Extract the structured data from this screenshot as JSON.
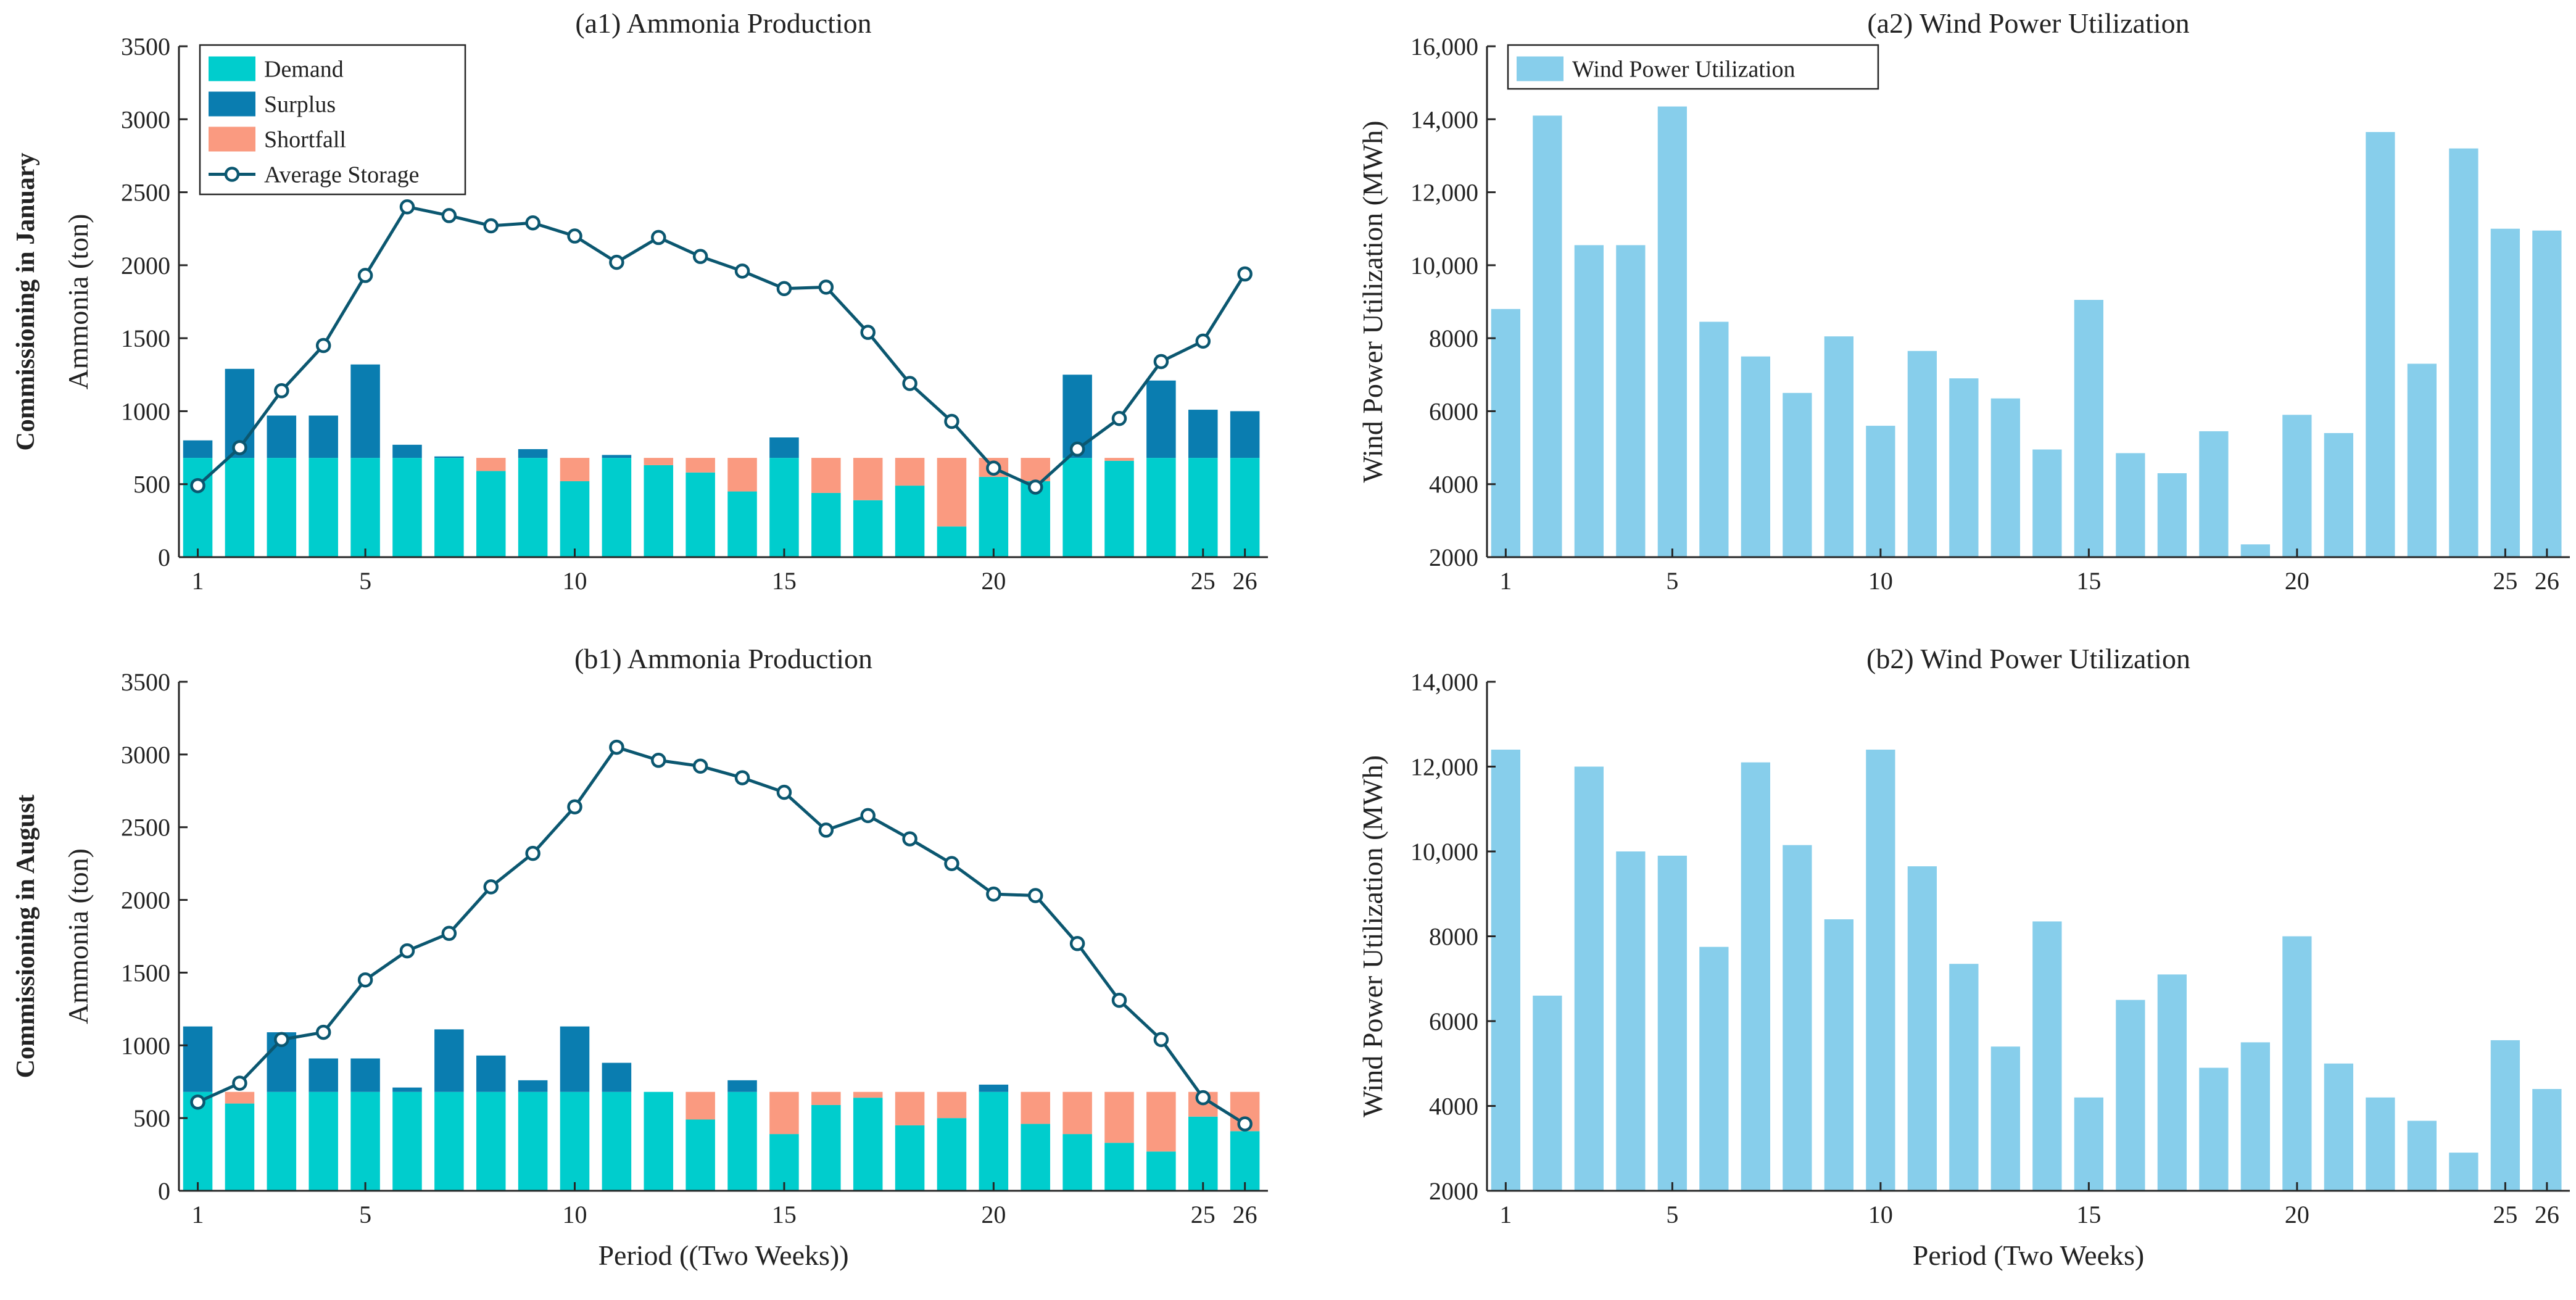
{
  "chart_data": [
    {
      "id": "a1",
      "type": "bar",
      "stacked": true,
      "title": "(a1) Ammonia Production",
      "row_label": "Commissioning in January",
      "ylabel": "Ammonia (ton)",
      "xlabel": "",
      "ylim": [
        0,
        3500
      ],
      "yticks": [
        0,
        500,
        1000,
        1500,
        2000,
        2500,
        3000,
        3500
      ],
      "xticks": [
        1,
        5,
        10,
        15,
        20,
        25,
        26
      ],
      "x": [
        1,
        2,
        3,
        4,
        5,
        6,
        7,
        8,
        9,
        10,
        11,
        12,
        13,
        14,
        15,
        16,
        17,
        18,
        19,
        20,
        21,
        22,
        23,
        24,
        25,
        26
      ],
      "series": [
        {
          "name": "Demand",
          "kind": "bar",
          "color": "#00CDCD",
          "values": [
            680,
            680,
            680,
            680,
            680,
            680,
            680,
            590,
            680,
            520,
            680,
            630,
            580,
            450,
            680,
            440,
            390,
            490,
            210,
            550,
            520,
            680,
            660,
            680,
            680,
            680
          ]
        },
        {
          "name": "Surplus",
          "kind": "bar",
          "color": "#0A7DB0",
          "values": [
            120,
            610,
            290,
            290,
            640,
            90,
            10,
            0,
            60,
            0,
            20,
            0,
            0,
            0,
            140,
            0,
            0,
            0,
            0,
            0,
            0,
            570,
            0,
            530,
            330,
            320
          ]
        },
        {
          "name": "Shortfall",
          "kind": "bar",
          "color": "#FA9A80",
          "values": [
            0,
            0,
            0,
            0,
            0,
            0,
            0,
            90,
            0,
            160,
            0,
            50,
            100,
            230,
            0,
            240,
            290,
            190,
            470,
            130,
            160,
            0,
            20,
            0,
            0,
            0
          ]
        },
        {
          "name": "Average Storage",
          "kind": "line",
          "color": "#0B5770",
          "values": [
            490,
            750,
            1140,
            1450,
            1930,
            2400,
            2340,
            2270,
            2290,
            2200,
            2020,
            2190,
            2060,
            1960,
            1840,
            1850,
            1540,
            1190,
            930,
            610,
            480,
            740,
            950,
            1340,
            1480,
            1940
          ]
        }
      ],
      "legend": {
        "position": "top-left",
        "entries": [
          "Demand",
          "Surplus",
          "Shortfall",
          "Average Storage"
        ]
      }
    },
    {
      "id": "a2",
      "type": "bar",
      "title": "(a2) Wind Power Utilization",
      "ylabel": "Wind Power Utilization (MWh)",
      "xlabel": "",
      "ylim": [
        2000,
        16000
      ],
      "yticks": [
        2000,
        4000,
        6000,
        8000,
        10000,
        12000,
        14000,
        16000
      ],
      "ytick_labels": [
        "2000",
        "4000",
        "6000",
        "8000",
        "10,000",
        "12,000",
        "14,000",
        "16,000"
      ],
      "xticks": [
        1,
        5,
        10,
        15,
        20,
        25,
        26
      ],
      "x": [
        1,
        2,
        3,
        4,
        5,
        6,
        7,
        8,
        9,
        10,
        11,
        12,
        13,
        14,
        15,
        16,
        17,
        18,
        19,
        20,
        21,
        22,
        23,
        24,
        25,
        26
      ],
      "series": [
        {
          "name": "Wind Power Utilization",
          "kind": "bar",
          "color": "#87CEEB",
          "values": [
            8800,
            14100,
            10550,
            10550,
            14350,
            8450,
            7500,
            6500,
            8050,
            5600,
            7650,
            6900,
            6350,
            4950,
            9050,
            4850,
            4300,
            5450,
            2350,
            5900,
            5400,
            13650,
            7300,
            13200,
            11000,
            10950
          ]
        }
      ],
      "legend": {
        "position": "top-left",
        "entries": [
          "Wind Power Utilization"
        ]
      }
    },
    {
      "id": "b1",
      "type": "bar",
      "stacked": true,
      "title": "(b1) Ammonia Production",
      "row_label": "Commissioning in August",
      "ylabel": "Ammonia (ton)",
      "xlabel": "Period ((Two Weeks))",
      "ylim": [
        0,
        3500
      ],
      "yticks": [
        0,
        500,
        1000,
        1500,
        2000,
        2500,
        3000,
        3500
      ],
      "xticks": [
        1,
        5,
        10,
        15,
        20,
        25,
        26
      ],
      "x": [
        1,
        2,
        3,
        4,
        5,
        6,
        7,
        8,
        9,
        10,
        11,
        12,
        13,
        14,
        15,
        16,
        17,
        18,
        19,
        20,
        21,
        22,
        23,
        24,
        25,
        26
      ],
      "series": [
        {
          "name": "Demand",
          "kind": "bar",
          "color": "#00CDCD",
          "values": [
            680,
            600,
            680,
            680,
            680,
            680,
            680,
            680,
            680,
            680,
            680,
            680,
            490,
            680,
            390,
            590,
            640,
            450,
            500,
            680,
            460,
            390,
            330,
            270,
            510,
            410
          ]
        },
        {
          "name": "Surplus",
          "kind": "bar",
          "color": "#0A7DB0",
          "values": [
            450,
            0,
            410,
            230,
            230,
            30,
            430,
            250,
            80,
            450,
            200,
            0,
            0,
            80,
            0,
            0,
            0,
            0,
            0,
            50,
            0,
            0,
            0,
            0,
            0,
            0
          ]
        },
        {
          "name": "Shortfall",
          "kind": "bar",
          "color": "#FA9A80",
          "values": [
            0,
            80,
            0,
            0,
            0,
            0,
            0,
            0,
            0,
            0,
            0,
            0,
            190,
            0,
            290,
            90,
            40,
            230,
            180,
            0,
            220,
            290,
            350,
            410,
            170,
            270
          ]
        },
        {
          "name": "Average Storage",
          "kind": "line",
          "color": "#0B5770",
          "values": [
            610,
            740,
            1040,
            1090,
            1450,
            1650,
            1770,
            2090,
            2320,
            2640,
            3050,
            2960,
            2920,
            2840,
            2740,
            2480,
            2580,
            2420,
            2250,
            2040,
            2030,
            1700,
            1310,
            1040,
            640,
            460
          ]
        }
      ],
      "legend": {
        "position": "none",
        "entries": []
      }
    },
    {
      "id": "b2",
      "type": "bar",
      "title": "(b2) Wind Power Utilization",
      "ylabel": "Wind Power Utilization (MWh)",
      "xlabel": "Period (Two Weeks)",
      "ylim": [
        2000,
        14000
      ],
      "yticks": [
        2000,
        4000,
        6000,
        8000,
        10000,
        12000,
        14000
      ],
      "ytick_labels": [
        "2000",
        "4000",
        "6000",
        "8000",
        "10,000",
        "12,000",
        "14,000"
      ],
      "xticks": [
        1,
        5,
        10,
        15,
        20,
        25,
        26
      ],
      "x": [
        1,
        2,
        3,
        4,
        5,
        6,
        7,
        8,
        9,
        10,
        11,
        12,
        13,
        14,
        15,
        16,
        17,
        18,
        19,
        20,
        21,
        22,
        23,
        24,
        25,
        26
      ],
      "series": [
        {
          "name": "Wind Power Utilization",
          "kind": "bar",
          "color": "#87CEEB",
          "values": [
            12400,
            6600,
            12000,
            10000,
            9900,
            7750,
            12100,
            10150,
            8400,
            12400,
            9650,
            7350,
            5400,
            8350,
            4200,
            6500,
            7100,
            4900,
            5500,
            8000,
            5000,
            4200,
            3650,
            2900,
            5550,
            4400
          ]
        }
      ],
      "legend": {
        "position": "none",
        "entries": []
      }
    }
  ]
}
